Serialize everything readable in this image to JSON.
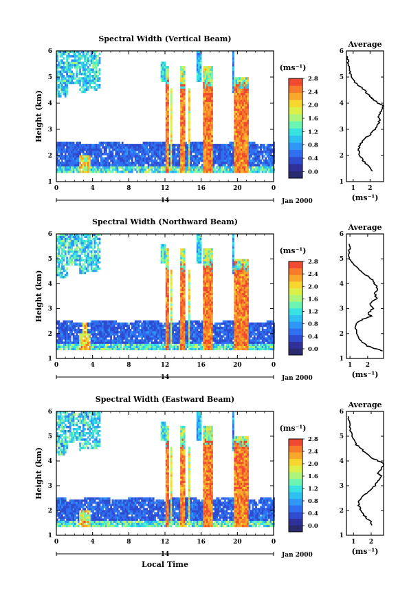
{
  "chart_data": [
    {
      "type": "heatmap",
      "title": "Spectral Width (Vertical Beam)",
      "ylabel": "Height (km)",
      "xlim": [
        0,
        24
      ],
      "ylim": [
        1,
        6
      ],
      "x_ticks": [
        "0",
        "4",
        "8",
        "12",
        "16",
        "20",
        "0"
      ],
      "y_ticks": [
        "1",
        "2",
        "3",
        "4",
        "5",
        "6"
      ],
      "date_day": "14",
      "date_label": "Jan 2000",
      "colorbar": {
        "unit": "(ms⁻¹)",
        "ticks": [
          "0.0",
          "0.4",
          "0.8",
          "1.2",
          "1.6",
          "2.0",
          "2.4",
          "2.8"
        ],
        "range": [
          0,
          3
        ]
      },
      "average": {
        "title": "Average",
        "xlabel": "(ms⁻¹)",
        "x_ticks": [
          "1",
          "2"
        ],
        "y_ticks": [
          "1",
          "2",
          "3",
          "4",
          "5",
          "6"
        ],
        "xlim": [
          0.6,
          2.8
        ],
        "profile": [
          [
            2.2,
            1.4
          ],
          [
            1.9,
            1.6
          ],
          [
            1.6,
            1.8
          ],
          [
            1.4,
            2.0
          ],
          [
            1.3,
            2.2
          ],
          [
            1.4,
            2.4
          ],
          [
            1.6,
            2.6
          ],
          [
            2.0,
            2.8
          ],
          [
            2.3,
            3.0
          ],
          [
            2.5,
            3.2
          ],
          [
            2.6,
            3.4
          ],
          [
            2.5,
            3.5
          ],
          [
            2.7,
            3.7
          ],
          [
            2.8,
            3.9
          ],
          [
            2.5,
            4.0
          ],
          [
            2.3,
            4.1
          ],
          [
            2.1,
            4.2
          ],
          [
            1.8,
            4.4
          ],
          [
            1.5,
            4.6
          ],
          [
            1.1,
            4.8
          ],
          [
            0.9,
            5.0
          ],
          [
            0.8,
            5.2
          ],
          [
            0.75,
            5.4
          ],
          [
            0.7,
            5.6
          ],
          [
            0.65,
            5.8
          ]
        ]
      }
    },
    {
      "type": "heatmap",
      "title": "Spectral Width (Northward Beam)",
      "ylabel": "Height (km)",
      "xlim": [
        0,
        24
      ],
      "ylim": [
        1,
        6
      ],
      "x_ticks": [
        "0",
        "4",
        "8",
        "12",
        "16",
        "20",
        "0"
      ],
      "y_ticks": [
        "1",
        "2",
        "3",
        "4",
        "5",
        "6"
      ],
      "date_day": "14",
      "date_label": "Jan 2000",
      "colorbar": {
        "unit": "(ms⁻¹)",
        "ticks": [
          "0.0",
          "0.4",
          "0.8",
          "1.2",
          "1.6",
          "2.0",
          "2.4",
          "2.8"
        ],
        "range": [
          0,
          3
        ]
      },
      "average": {
        "title": "Average",
        "xlabel": "(ms⁻¹)",
        "x_ticks": [
          "1",
          "2"
        ],
        "y_ticks": [
          "1",
          "2",
          "3",
          "4",
          "5",
          "6"
        ],
        "xlim": [
          0.8,
          2.9
        ],
        "profile": [
          [
            2.9,
            1.3
          ],
          [
            2.4,
            1.4
          ],
          [
            2.0,
            1.5
          ],
          [
            1.6,
            1.7
          ],
          [
            1.4,
            2.0
          ],
          [
            1.3,
            2.3
          ],
          [
            1.5,
            2.5
          ],
          [
            1.8,
            2.6
          ],
          [
            2.2,
            2.7
          ],
          [
            2.0,
            2.8
          ],
          [
            2.3,
            3.0
          ],
          [
            2.1,
            3.2
          ],
          [
            2.5,
            3.4
          ],
          [
            2.4,
            3.6
          ],
          [
            2.6,
            3.8
          ],
          [
            2.4,
            4.0
          ],
          [
            2.2,
            4.2
          ],
          [
            1.8,
            4.4
          ],
          [
            1.5,
            4.6
          ],
          [
            1.2,
            4.8
          ],
          [
            1.0,
            5.0
          ],
          [
            0.9,
            5.2
          ],
          [
            1.0,
            5.4
          ],
          [
            0.95,
            5.6
          ]
        ]
      }
    },
    {
      "type": "heatmap",
      "title": "Spectral Width (Eastward Beam)",
      "ylabel": "Height (km)",
      "xlabel": "Local Time",
      "xlim": [
        0,
        24
      ],
      "ylim": [
        1,
        6
      ],
      "x_ticks": [
        "0",
        "4",
        "8",
        "12",
        "16",
        "20",
        "0"
      ],
      "y_ticks": [
        "1",
        "2",
        "3",
        "4",
        "5",
        "6"
      ],
      "date_day": "14",
      "date_label": "Jan 2000",
      "colorbar": {
        "unit": "(ms⁻¹)",
        "ticks": [
          "0.0",
          "0.4",
          "0.8",
          "1.2",
          "1.6",
          "2.0",
          "2.4",
          "2.8"
        ],
        "range": [
          0,
          3
        ]
      },
      "average": {
        "title": "Average",
        "xlabel": "(ms⁻¹)",
        "x_ticks": [
          "1",
          "2"
        ],
        "y_ticks": [
          "1",
          "2",
          "3",
          "4",
          "5",
          "6"
        ],
        "xlim": [
          0.6,
          2.7
        ],
        "profile": [
          [
            2.1,
            1.4
          ],
          [
            1.9,
            1.6
          ],
          [
            1.6,
            1.8
          ],
          [
            1.4,
            2.0
          ],
          [
            1.3,
            2.2
          ],
          [
            1.3,
            2.4
          ],
          [
            1.6,
            2.6
          ],
          [
            1.9,
            2.8
          ],
          [
            2.2,
            3.0
          ],
          [
            2.4,
            3.2
          ],
          [
            2.6,
            3.4
          ],
          [
            2.3,
            3.5
          ],
          [
            2.6,
            3.7
          ],
          [
            2.7,
            3.9
          ],
          [
            2.4,
            4.0
          ],
          [
            2.1,
            4.1
          ],
          [
            1.7,
            4.3
          ],
          [
            1.4,
            4.5
          ],
          [
            1.1,
            4.7
          ],
          [
            0.9,
            5.0
          ],
          [
            0.8,
            5.3
          ],
          [
            0.75,
            5.6
          ],
          [
            0.7,
            5.8
          ]
        ]
      }
    }
  ],
  "colors": {
    "palette": [
      "#2a2a6e",
      "#30309a",
      "#2f4bd0",
      "#2f6ff0",
      "#2f98f7",
      "#2fc0f2",
      "#37e2e0",
      "#6cf5b2",
      "#aaf57a",
      "#dcf04a",
      "#f7d72e",
      "#f7a82a",
      "#f77b2a",
      "#f04a30"
    ]
  }
}
